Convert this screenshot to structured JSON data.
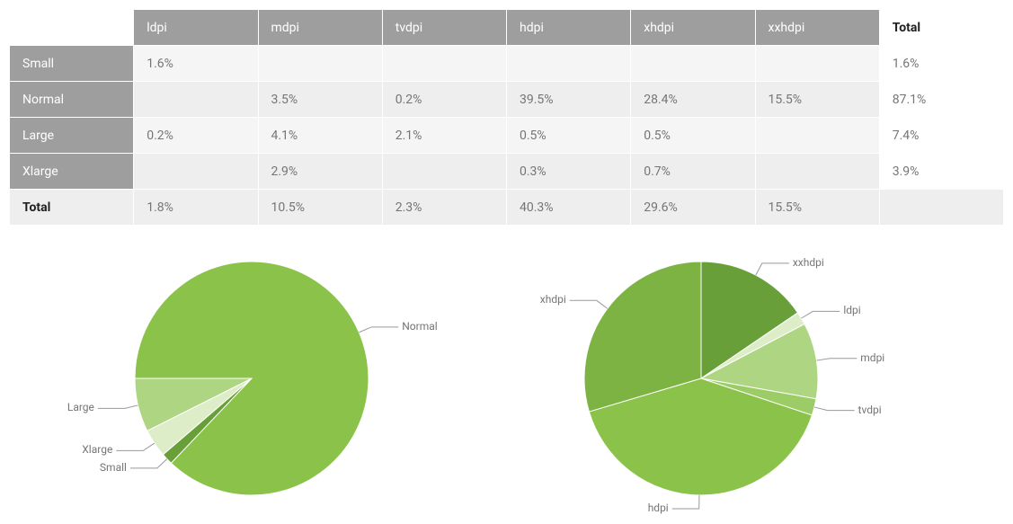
{
  "table": {
    "grandTotalLabel": "Total",
    "footerLabel": "Total",
    "columns": [
      "ldpi",
      "mdpi",
      "tvdpi",
      "hdpi",
      "xhdpi",
      "xxhdpi"
    ],
    "rowLabels": [
      "Small",
      "Normal",
      "Large",
      "Xlarge"
    ],
    "cells": [
      [
        "1.6%",
        "",
        "",
        "",
        "",
        ""
      ],
      [
        "",
        "3.5%",
        "0.2%",
        "39.5%",
        "28.4%",
        "15.5%"
      ],
      [
        "0.2%",
        "4.1%",
        "2.1%",
        "0.5%",
        "0.5%",
        ""
      ],
      [
        "",
        "2.9%",
        "",
        "0.3%",
        "0.7%",
        ""
      ]
    ],
    "rowTotals": [
      "1.6%",
      "87.1%",
      "7.4%",
      "3.9%"
    ],
    "colTotals": [
      "1.8%",
      "10.5%",
      "2.3%",
      "40.3%",
      "29.6%",
      "15.5%"
    ],
    "colors": {
      "headerBg": "#9e9e9e",
      "headerText": "#ffffff",
      "cellText": "#757575",
      "rowEven": "#f5f5f5",
      "rowOdd": "#eeeeee",
      "totalText": "#212121"
    }
  },
  "pie_size": {
    "type": "pie",
    "radius": 130,
    "background": "#ffffff",
    "startAngle": -180,
    "direction": "cw",
    "label_fontsize": 12,
    "label_color": "#757575",
    "leader_color": "#999999",
    "slice_border_color": "#ffffff",
    "slices": [
      {
        "label": "Normal",
        "value": 87.1,
        "color": "#8bc34a"
      },
      {
        "label": "Small",
        "value": 1.6,
        "color": "#689f38"
      },
      {
        "label": "Xlarge",
        "value": 3.9,
        "color": "#dcedc8"
      },
      {
        "label": "Large",
        "value": 7.4,
        "color": "#aed581"
      }
    ]
  },
  "pie_density": {
    "type": "pie",
    "radius": 130,
    "background": "#ffffff",
    "startAngle": -90,
    "direction": "cw",
    "label_fontsize": 12,
    "label_color": "#757575",
    "leader_color": "#999999",
    "slice_border_color": "#ffffff",
    "slices": [
      {
        "label": "xxhdpi",
        "value": 15.5,
        "color": "#689f38"
      },
      {
        "label": "ldpi",
        "value": 1.8,
        "color": "#dcedc8"
      },
      {
        "label": "mdpi",
        "value": 10.5,
        "color": "#aed581"
      },
      {
        "label": "tvdpi",
        "value": 2.3,
        "color": "#9ccc65"
      },
      {
        "label": "hdpi",
        "value": 40.3,
        "color": "#8bc34a"
      },
      {
        "label": "xhdpi",
        "value": 29.6,
        "color": "#7cb342"
      }
    ]
  }
}
